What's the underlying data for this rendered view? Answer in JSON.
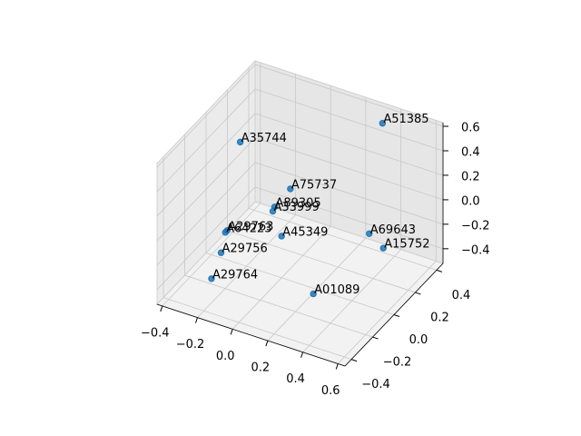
{
  "chart_data": {
    "type": "scatter3d",
    "labels": [
      "A51385",
      "A35744",
      "A75737",
      "A89305",
      "A33999",
      "A29763",
      "A64223",
      "A29756",
      "A45349",
      "A69643",
      "A15752",
      "A29764",
      "A01089"
    ],
    "x": [
      0.35,
      -0.29,
      0.05,
      -0.04,
      -0.05,
      -0.31,
      -0.32,
      -0.29,
      0.0,
      0.39,
      0.47,
      -0.29,
      0.29
    ],
    "y": [
      0.37,
      0.09,
      0.0,
      0.0,
      0.0,
      0.0,
      0.0,
      -0.09,
      0.0,
      0.18,
      0.18,
      -0.18,
      -0.18
    ],
    "z": [
      0.57,
      0.37,
      0.23,
      0.04,
      0.0,
      -0.28,
      -0.3,
      -0.37,
      -0.18,
      -0.14,
      -0.22,
      -0.5,
      -0.35
    ],
    "color": "#1f77b4",
    "xlim": [
      -0.43,
      0.64
    ],
    "ylim": [
      -0.46,
      0.46
    ],
    "zlim": [
      -0.52,
      0.63
    ],
    "xticks": [
      {
        "value": -0.4,
        "label": "−0.4"
      },
      {
        "value": -0.2,
        "label": "−0.2"
      },
      {
        "value": 0,
        "label": "0.0"
      },
      0.2,
      0.4,
      0.6
    ],
    "yticks": [
      {
        "value": -0.4,
        "label": "−0.4"
      },
      {
        "value": -0.2,
        "label": "−0.2"
      },
      {
        "value": 0,
        "label": "0.0"
      },
      0.2,
      0.4
    ],
    "zticks": [
      {
        "value": -0.4,
        "label": "−0.4"
      },
      {
        "value": -0.2,
        "label": "−0.2"
      },
      {
        "value": 0,
        "label": "0.0"
      },
      0.2,
      0.4,
      0.6
    ],
    "grid": true
  }
}
